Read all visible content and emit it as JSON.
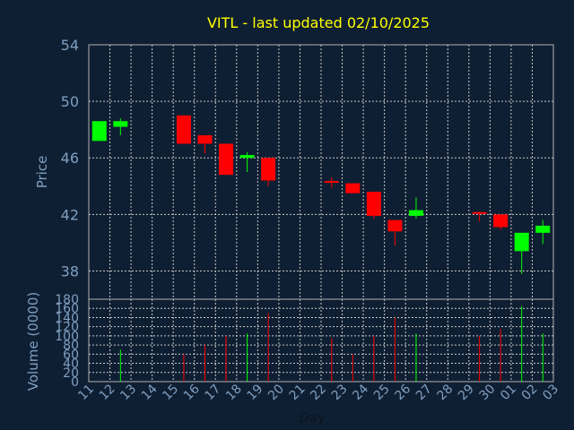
{
  "chart_data": {
    "type": "candlestick",
    "title": "VITL - last updated 02/10/2025",
    "xlabel": "Day",
    "ylabel": "Price",
    "volume_label": "Volume (0000)",
    "x": [
      "11",
      "12",
      "13",
      "14",
      "15",
      "16",
      "17",
      "18",
      "19",
      "20",
      "21",
      "22",
      "23",
      "24",
      "25",
      "26",
      "27",
      "28",
      "29",
      "30",
      "01",
      "02",
      "03"
    ],
    "ylim": [
      36,
      54
    ],
    "yticks": [
      38,
      42,
      46,
      50,
      54
    ],
    "volume_ylim": [
      0,
      180
    ],
    "volume_ticks": [
      0,
      20,
      40,
      60,
      80,
      100,
      120,
      140,
      160,
      180
    ],
    "grid": true,
    "up_color": "#00ff00",
    "down_color": "#ff0000",
    "candles": [
      {
        "x": "11",
        "open": 47.2,
        "close": 48.6,
        "high": 48.6,
        "low": 47.2,
        "volume": 0
      },
      {
        "x": "12",
        "open": 48.2,
        "close": 48.6,
        "high": 48.8,
        "low": 47.6,
        "volume": 70
      },
      {
        "x": "15",
        "open": 49.0,
        "close": 47.0,
        "high": 49.0,
        "low": 47.0,
        "volume": 60
      },
      {
        "x": "16",
        "open": 47.6,
        "close": 47.0,
        "high": 47.6,
        "low": 46.3,
        "volume": 80
      },
      {
        "x": "17",
        "open": 47.0,
        "close": 44.8,
        "high": 47.0,
        "low": 44.8,
        "volume": 100
      },
      {
        "x": "18",
        "open": 46.0,
        "close": 46.2,
        "high": 46.4,
        "low": 45.0,
        "volume": 105
      },
      {
        "x": "19",
        "open": 46.0,
        "close": 44.4,
        "high": 46.0,
        "low": 44.0,
        "volume": 150
      },
      {
        "x": "22",
        "open": 44.3,
        "close": 44.2,
        "high": 44.6,
        "low": 43.9,
        "volume": 95
      },
      {
        "x": "23",
        "open": 44.2,
        "close": 43.5,
        "high": 44.2,
        "low": 43.5,
        "volume": 60
      },
      {
        "x": "24",
        "open": 43.6,
        "close": 41.9,
        "high": 43.6,
        "low": 41.7,
        "volume": 100
      },
      {
        "x": "25",
        "open": 41.6,
        "close": 40.8,
        "high": 41.6,
        "low": 39.8,
        "volume": 140
      },
      {
        "x": "26",
        "open": 41.9,
        "close": 42.3,
        "high": 43.2,
        "low": 41.7,
        "volume": 105
      },
      {
        "x": "29",
        "open": 42.1,
        "close": 42.0,
        "high": 42.2,
        "low": 41.5,
        "volume": 100
      },
      {
        "x": "30",
        "open": 42.0,
        "close": 41.1,
        "high": 42.0,
        "low": 40.9,
        "volume": 115
      },
      {
        "x": "01",
        "open": 39.4,
        "close": 40.7,
        "high": 40.7,
        "low": 37.8,
        "volume": 165
      },
      {
        "x": "02",
        "open": 40.7,
        "close": 41.2,
        "high": 41.6,
        "low": 39.9,
        "volume": 105
      }
    ]
  }
}
